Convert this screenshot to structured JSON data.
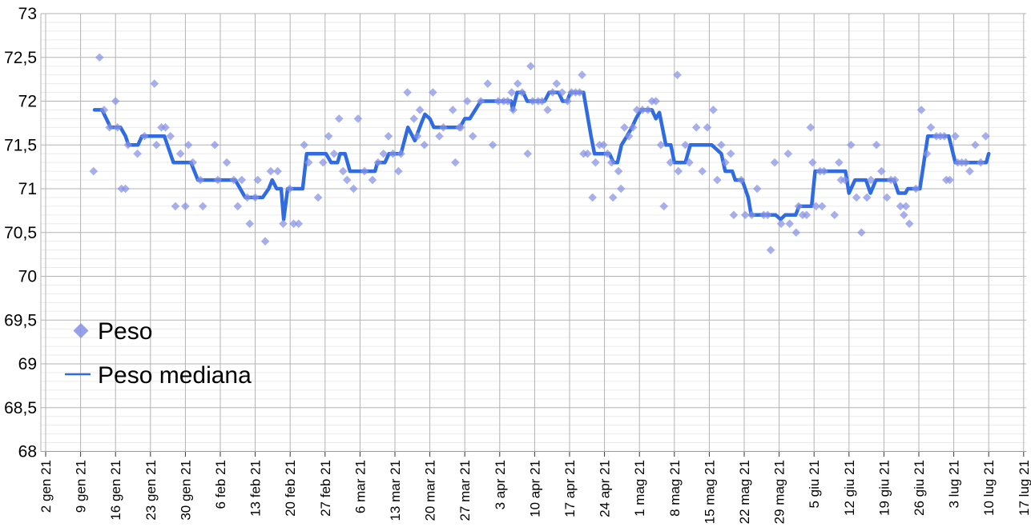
{
  "chart_data": {
    "type": "scatter",
    "title": "",
    "x_axis": {
      "kind": "weekly-dates",
      "tick_labels": [
        "2 gen 21",
        "9 gen 21",
        "16 gen 21",
        "23 gen 21",
        "30 gen 21",
        "6 feb 21",
        "13 feb 21",
        "20 feb 21",
        "27 feb 21",
        "6 mar 21",
        "13 mar 21",
        "20 mar 21",
        "27 mar 21",
        "3 apr 21",
        "10 apr 21",
        "17 apr 21",
        "24 apr 21",
        "1 mag 21",
        "8 mag 21",
        "15 mag 21",
        "22 mag 21",
        "29 mag 21",
        "5 giu 21",
        "12 giu 21",
        "19 giu 21",
        "26 giu 21",
        "3 lug 21",
        "10 lug 21",
        "17 lug 21"
      ],
      "days_per_tick": 7,
      "range_days": [
        0,
        196
      ]
    },
    "y_axis": {
      "min": 68,
      "max": 73,
      "major_step": 0.5,
      "minor_step": 0.1,
      "tick_labels": [
        "73",
        "72,5",
        "72",
        "71,5",
        "71",
        "70,5",
        "70",
        "69,5",
        "69",
        "68,5",
        "68"
      ]
    },
    "legend": {
      "position": "left-middle",
      "entries": [
        "Peso",
        "Peso mediana"
      ]
    },
    "series": [
      {
        "name": "Peso",
        "type": "scatter",
        "marker": "diamond",
        "color": "#8591e6",
        "opacity": 0.72,
        "points": [
          [
            9.6,
            71.2
          ],
          [
            10.8,
            72.5
          ],
          [
            11.7,
            71.9
          ],
          [
            12.8,
            71.7
          ],
          [
            14,
            72
          ],
          [
            14.4,
            71.7
          ],
          [
            15.2,
            71
          ],
          [
            16,
            71
          ],
          [
            16.5,
            71.5
          ],
          [
            18.4,
            71.4
          ],
          [
            19.8,
            71.6
          ],
          [
            21.8,
            72.2
          ],
          [
            22.2,
            71.5
          ],
          [
            23.2,
            71.7
          ],
          [
            24,
            71.7
          ],
          [
            25,
            71.6
          ],
          [
            26,
            70.8
          ],
          [
            27,
            71.4
          ],
          [
            28,
            70.8
          ],
          [
            28.6,
            71.5
          ],
          [
            29.5,
            71.3
          ],
          [
            31,
            71.1
          ],
          [
            31.5,
            70.8
          ],
          [
            33.9,
            71.5
          ],
          [
            34.5,
            71.1
          ],
          [
            36.3,
            71.3
          ],
          [
            37.7,
            71.1
          ],
          [
            38.5,
            70.8
          ],
          [
            39.3,
            71.1
          ],
          [
            40.4,
            70.9
          ],
          [
            40.9,
            70.6
          ],
          [
            42,
            70.9
          ],
          [
            42.5,
            71.1
          ],
          [
            44,
            70.4
          ],
          [
            45.1,
            71.2
          ],
          [
            46.5,
            71.2
          ],
          [
            47.6,
            70.6
          ],
          [
            48.9,
            71
          ],
          [
            49.7,
            70.6
          ],
          [
            50.7,
            70.6
          ],
          [
            51.8,
            71.5
          ],
          [
            52.7,
            71.3
          ],
          [
            54.6,
            70.9
          ],
          [
            55.6,
            71.3
          ],
          [
            56.7,
            71.6
          ],
          [
            57.8,
            71.4
          ],
          [
            58.8,
            71.8
          ],
          [
            59.6,
            71.2
          ],
          [
            60.4,
            71.1
          ],
          [
            61.7,
            71
          ],
          [
            62.6,
            71.8
          ],
          [
            63.9,
            71.2
          ],
          [
            65.5,
            71.1
          ],
          [
            66.6,
            71.3
          ],
          [
            67.7,
            71.4
          ],
          [
            68.7,
            71.6
          ],
          [
            69.6,
            71.4
          ],
          [
            70.7,
            71.2
          ],
          [
            71.2,
            71.4
          ],
          [
            72.5,
            72.1
          ],
          [
            73.8,
            71.8
          ],
          [
            74.5,
            71.6
          ],
          [
            75,
            71.9
          ],
          [
            75.9,
            71.5
          ],
          [
            77.6,
            72.1
          ],
          [
            78.9,
            71.6
          ],
          [
            79.7,
            71.7
          ],
          [
            81.6,
            71.9
          ],
          [
            82.1,
            71.3
          ],
          [
            82.9,
            71.7
          ],
          [
            83.2,
            71.7
          ],
          [
            84.5,
            72
          ],
          [
            85.6,
            71.6
          ],
          [
            87.2,
            72
          ],
          [
            88.6,
            72.2
          ],
          [
            89.6,
            71.5
          ],
          [
            90.7,
            72
          ],
          [
            91.8,
            72
          ],
          [
            92.6,
            72
          ],
          [
            93.4,
            72.1
          ],
          [
            93.7,
            71.9
          ],
          [
            94.6,
            72.2
          ],
          [
            95.5,
            72.1
          ],
          [
            96.6,
            71.4
          ],
          [
            97.2,
            72.4
          ],
          [
            97.6,
            72
          ],
          [
            98.7,
            72
          ],
          [
            99.5,
            72
          ],
          [
            100.6,
            71.9
          ],
          [
            101.6,
            72.1
          ],
          [
            102.4,
            72.2
          ],
          [
            103.5,
            72.1
          ],
          [
            104.6,
            72
          ],
          [
            105.4,
            72.1
          ],
          [
            106.2,
            72.1
          ],
          [
            107,
            72.1
          ],
          [
            107.5,
            72.3
          ],
          [
            107.8,
            71.4
          ],
          [
            108.6,
            71.4
          ],
          [
            109.6,
            70.9
          ],
          [
            110.2,
            71.3
          ],
          [
            111,
            71.5
          ],
          [
            111.8,
            71.5
          ],
          [
            112.6,
            71.4
          ],
          [
            113.4,
            71.3
          ],
          [
            113.7,
            70.9
          ],
          [
            114.8,
            71.2
          ],
          [
            115.3,
            71
          ],
          [
            116,
            71.7
          ],
          [
            116.9,
            71.6
          ],
          [
            117.7,
            71.7
          ],
          [
            118.5,
            71.9
          ],
          [
            119.6,
            71.9
          ],
          [
            120.7,
            71.9
          ],
          [
            121.5,
            72
          ],
          [
            122.3,
            72
          ],
          [
            123.3,
            71.5
          ],
          [
            123.9,
            70.8
          ],
          [
            125.2,
            71.3
          ],
          [
            126.6,
            72.3
          ],
          [
            126.8,
            71.2
          ],
          [
            128.2,
            71.5
          ],
          [
            129,
            71.3
          ],
          [
            130.4,
            71.7
          ],
          [
            131.6,
            71.2
          ],
          [
            132.6,
            71.7
          ],
          [
            133.8,
            71.9
          ],
          [
            134.6,
            71.1
          ],
          [
            135.4,
            71.5
          ],
          [
            136.2,
            71.3
          ],
          [
            137.3,
            71.4
          ],
          [
            137.9,
            70.7
          ],
          [
            139.4,
            71.1
          ],
          [
            140.2,
            70.7
          ],
          [
            141.5,
            70.7
          ],
          [
            142.6,
            71
          ],
          [
            143.9,
            70.7
          ],
          [
            144.7,
            70.7
          ],
          [
            145.3,
            70.3
          ],
          [
            146.1,
            71.3
          ],
          [
            147.4,
            70.6
          ],
          [
            148.8,
            71.4
          ],
          [
            149.1,
            70.6
          ],
          [
            150.4,
            70.5
          ],
          [
            150.9,
            70.8
          ],
          [
            151.7,
            70.7
          ],
          [
            152.5,
            70.7
          ],
          [
            153.3,
            71.7
          ],
          [
            153.7,
            71.3
          ],
          [
            154.4,
            70.8
          ],
          [
            155.2,
            71.2
          ],
          [
            155.6,
            70.8
          ],
          [
            156,
            71.2
          ],
          [
            158.1,
            70.7
          ],
          [
            159,
            71.3
          ],
          [
            159.4,
            71.1
          ],
          [
            160.2,
            71.1
          ],
          [
            161.4,
            71.5
          ],
          [
            162.5,
            70.9
          ],
          [
            163.5,
            70.5
          ],
          [
            164.6,
            70.9
          ],
          [
            165.4,
            71.1
          ],
          [
            166.5,
            71.5
          ],
          [
            167.5,
            71.2
          ],
          [
            168.6,
            70.9
          ],
          [
            169.4,
            71.1
          ],
          [
            170.2,
            71.1
          ],
          [
            171.3,
            70.8
          ],
          [
            172,
            70.7
          ],
          [
            172.4,
            70.8
          ],
          [
            173.1,
            70.6
          ],
          [
            174.4,
            71
          ],
          [
            175.5,
            71.9
          ],
          [
            176.6,
            71.4
          ],
          [
            177.4,
            71.7
          ],
          [
            178.5,
            71.6
          ],
          [
            179.3,
            71.6
          ],
          [
            180.1,
            71.6
          ],
          [
            180.5,
            71.1
          ],
          [
            181.2,
            71.1
          ],
          [
            182.3,
            71.6
          ],
          [
            182.8,
            71.3
          ],
          [
            183.6,
            71.3
          ],
          [
            184.4,
            71.3
          ],
          [
            185.2,
            71.2
          ],
          [
            186.3,
            71.5
          ],
          [
            187.4,
            71.3
          ],
          [
            188.4,
            71.6
          ]
        ]
      },
      {
        "name": "Peso mediana",
        "type": "line",
        "color": "#2f6be2",
        "points": [
          [
            9.8,
            71.9
          ],
          [
            11.3,
            71.9
          ],
          [
            13,
            71.7
          ],
          [
            15,
            71.7
          ],
          [
            16,
            71.6
          ],
          [
            16.6,
            71.5
          ],
          [
            18.5,
            71.5
          ],
          [
            19.3,
            71.6
          ],
          [
            23.8,
            71.6
          ],
          [
            25.6,
            71.3
          ],
          [
            29.1,
            71.3
          ],
          [
            30.5,
            71.1
          ],
          [
            38,
            71.1
          ],
          [
            39,
            71
          ],
          [
            40,
            70.9
          ],
          [
            43.5,
            70.9
          ],
          [
            44.7,
            71
          ],
          [
            45.4,
            71.1
          ],
          [
            46.3,
            71
          ],
          [
            47.2,
            71
          ],
          [
            47.7,
            70.65
          ],
          [
            48.5,
            71
          ],
          [
            51.5,
            71
          ],
          [
            52.3,
            71.4
          ],
          [
            56.2,
            71.4
          ],
          [
            57.2,
            71.3
          ],
          [
            58.5,
            71.3
          ],
          [
            59,
            71.4
          ],
          [
            60,
            71.4
          ],
          [
            61,
            71.2
          ],
          [
            66,
            71.2
          ],
          [
            66.5,
            71.3
          ],
          [
            68,
            71.3
          ],
          [
            68.8,
            71.4
          ],
          [
            71.2,
            71.4
          ],
          [
            72.6,
            71.7
          ],
          [
            74,
            71.55
          ],
          [
            75.3,
            71.75
          ],
          [
            76,
            71.85
          ],
          [
            77,
            71.8
          ],
          [
            77.8,
            71.7
          ],
          [
            83,
            71.7
          ],
          [
            84,
            71.8
          ],
          [
            85,
            71.8
          ],
          [
            87.2,
            72
          ],
          [
            93.3,
            72
          ],
          [
            93.6,
            71.9
          ],
          [
            94.5,
            72.1
          ],
          [
            95.7,
            72.1
          ],
          [
            96.5,
            72
          ],
          [
            100,
            72
          ],
          [
            100.9,
            72.1
          ],
          [
            102.8,
            72.1
          ],
          [
            103.6,
            72
          ],
          [
            104.5,
            72
          ],
          [
            105.2,
            72.1
          ],
          [
            107.8,
            72.1
          ],
          [
            109.3,
            71.6
          ],
          [
            110,
            71.4
          ],
          [
            113,
            71.4
          ],
          [
            113.8,
            71.3
          ],
          [
            114.6,
            71.3
          ],
          [
            115.4,
            71.5
          ],
          [
            116.5,
            71.6
          ],
          [
            117.5,
            71.7
          ],
          [
            118.3,
            71.8
          ],
          [
            119.3,
            71.9
          ],
          [
            121.5,
            71.9
          ],
          [
            122.3,
            71.8
          ],
          [
            123,
            71.87
          ],
          [
            124.3,
            71.5
          ],
          [
            125.3,
            71.5
          ],
          [
            126,
            71.3
          ],
          [
            128.2,
            71.3
          ],
          [
            129.2,
            71.5
          ],
          [
            133.5,
            71.5
          ],
          [
            135.4,
            71.4
          ],
          [
            136.2,
            71.2
          ],
          [
            137.6,
            71.2
          ],
          [
            138.2,
            71.1
          ],
          [
            139.6,
            71.1
          ],
          [
            140.8,
            70.9
          ],
          [
            141.4,
            70.7
          ],
          [
            146.3,
            70.7
          ],
          [
            147.3,
            70.65
          ],
          [
            148.2,
            70.7
          ],
          [
            150.3,
            70.7
          ],
          [
            151,
            70.8
          ],
          [
            153.5,
            70.8
          ],
          [
            154.2,
            71.2
          ],
          [
            160.3,
            71.2
          ],
          [
            161,
            70.95
          ],
          [
            162.2,
            71.1
          ],
          [
            164.4,
            71.1
          ],
          [
            165.3,
            70.95
          ],
          [
            166.4,
            71.1
          ],
          [
            170,
            71.1
          ],
          [
            170.9,
            70.95
          ],
          [
            172.3,
            70.95
          ],
          [
            172.8,
            71
          ],
          [
            175.2,
            71
          ],
          [
            176.8,
            71.6
          ],
          [
            181,
            71.6
          ],
          [
            182.3,
            71.3
          ],
          [
            188.5,
            71.3
          ],
          [
            189,
            71.4
          ]
        ]
      }
    ]
  },
  "colors": {
    "background": "#ffffff",
    "grid_major": "#b3b3b3",
    "grid_minor": "#ebebeb",
    "axis_line": "#999999",
    "tick_mark": "#333333",
    "label_text": "#000000"
  }
}
